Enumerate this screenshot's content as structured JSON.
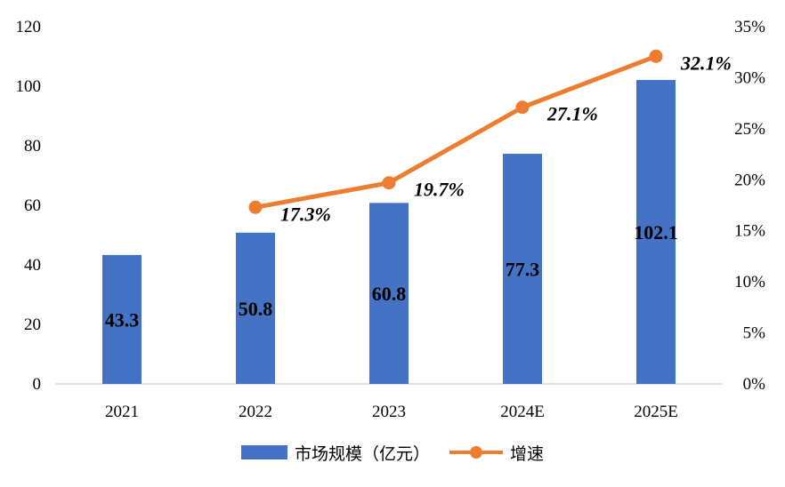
{
  "chart_data": {
    "type": "bar",
    "categories": [
      "2021",
      "2022",
      "2023",
      "2024E",
      "2025E"
    ],
    "series": [
      {
        "name": "市场规模（亿元）",
        "type": "bar",
        "axis": "left",
        "values": [
          43.3,
          50.8,
          60.8,
          77.3,
          102.1
        ],
        "labels": [
          "43.3",
          "50.8",
          "60.8",
          "77.3",
          "102.1"
        ],
        "color": "#4472C4"
      },
      {
        "name": "增速",
        "type": "line",
        "axis": "right",
        "values": [
          null,
          17.3,
          19.7,
          27.1,
          32.1
        ],
        "labels": [
          "",
          "17.3%",
          "19.7%",
          "27.1%",
          "32.1%"
        ],
        "color": "#ED7D31"
      }
    ],
    "y_left": {
      "ylim": [
        0,
        120
      ],
      "ticks": [
        "0",
        "20",
        "40",
        "60",
        "80",
        "100",
        "120"
      ]
    },
    "y_right": {
      "ylim": [
        0,
        35
      ],
      "ticks": [
        "0%",
        "5%",
        "10%",
        "15%",
        "20%",
        "25%",
        "30%",
        "35%"
      ]
    },
    "grid": false,
    "legend": "bottom-center"
  }
}
